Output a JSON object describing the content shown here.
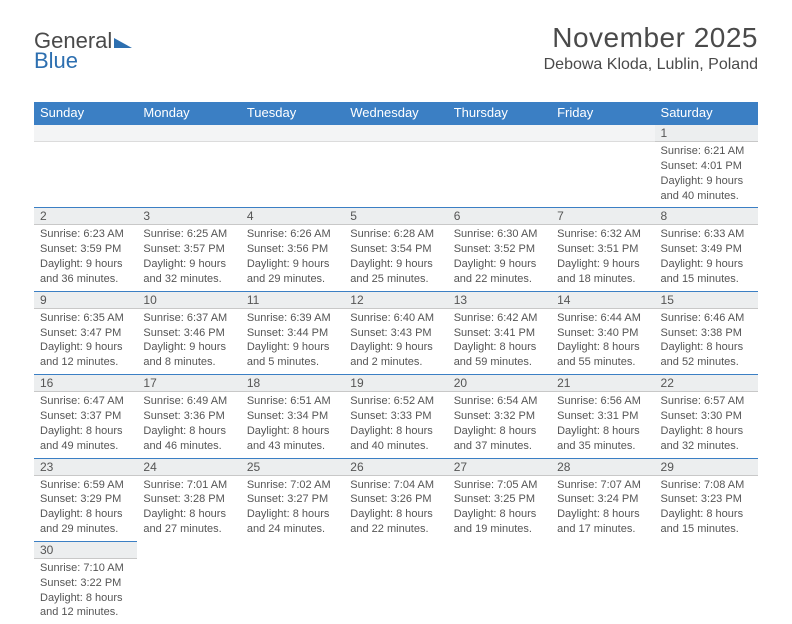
{
  "logo": {
    "part1": "General",
    "part2": "Blue"
  },
  "header": {
    "month_title": "November 2025",
    "location": "Debowa Kloda, Lublin, Poland"
  },
  "colors": {
    "header_bg": "#3b7fc4",
    "header_text": "#ffffff",
    "row_divider": "#3b7fc4",
    "daynum_bg": "#eceeef",
    "text": "#555555"
  },
  "weekdays": [
    "Sunday",
    "Monday",
    "Tuesday",
    "Wednesday",
    "Thursday",
    "Friday",
    "Saturday"
  ],
  "weeks": [
    [
      null,
      null,
      null,
      null,
      null,
      null,
      {
        "n": "1",
        "sunrise": "Sunrise: 6:21 AM",
        "sunset": "Sunset: 4:01 PM",
        "daylight": "Daylight: 9 hours and 40 minutes."
      }
    ],
    [
      {
        "n": "2",
        "sunrise": "Sunrise: 6:23 AM",
        "sunset": "Sunset: 3:59 PM",
        "daylight": "Daylight: 9 hours and 36 minutes."
      },
      {
        "n": "3",
        "sunrise": "Sunrise: 6:25 AM",
        "sunset": "Sunset: 3:57 PM",
        "daylight": "Daylight: 9 hours and 32 minutes."
      },
      {
        "n": "4",
        "sunrise": "Sunrise: 6:26 AM",
        "sunset": "Sunset: 3:56 PM",
        "daylight": "Daylight: 9 hours and 29 minutes."
      },
      {
        "n": "5",
        "sunrise": "Sunrise: 6:28 AM",
        "sunset": "Sunset: 3:54 PM",
        "daylight": "Daylight: 9 hours and 25 minutes."
      },
      {
        "n": "6",
        "sunrise": "Sunrise: 6:30 AM",
        "sunset": "Sunset: 3:52 PM",
        "daylight": "Daylight: 9 hours and 22 minutes."
      },
      {
        "n": "7",
        "sunrise": "Sunrise: 6:32 AM",
        "sunset": "Sunset: 3:51 PM",
        "daylight": "Daylight: 9 hours and 18 minutes."
      },
      {
        "n": "8",
        "sunrise": "Sunrise: 6:33 AM",
        "sunset": "Sunset: 3:49 PM",
        "daylight": "Daylight: 9 hours and 15 minutes."
      }
    ],
    [
      {
        "n": "9",
        "sunrise": "Sunrise: 6:35 AM",
        "sunset": "Sunset: 3:47 PM",
        "daylight": "Daylight: 9 hours and 12 minutes."
      },
      {
        "n": "10",
        "sunrise": "Sunrise: 6:37 AM",
        "sunset": "Sunset: 3:46 PM",
        "daylight": "Daylight: 9 hours and 8 minutes."
      },
      {
        "n": "11",
        "sunrise": "Sunrise: 6:39 AM",
        "sunset": "Sunset: 3:44 PM",
        "daylight": "Daylight: 9 hours and 5 minutes."
      },
      {
        "n": "12",
        "sunrise": "Sunrise: 6:40 AM",
        "sunset": "Sunset: 3:43 PM",
        "daylight": "Daylight: 9 hours and 2 minutes."
      },
      {
        "n": "13",
        "sunrise": "Sunrise: 6:42 AM",
        "sunset": "Sunset: 3:41 PM",
        "daylight": "Daylight: 8 hours and 59 minutes."
      },
      {
        "n": "14",
        "sunrise": "Sunrise: 6:44 AM",
        "sunset": "Sunset: 3:40 PM",
        "daylight": "Daylight: 8 hours and 55 minutes."
      },
      {
        "n": "15",
        "sunrise": "Sunrise: 6:46 AM",
        "sunset": "Sunset: 3:38 PM",
        "daylight": "Daylight: 8 hours and 52 minutes."
      }
    ],
    [
      {
        "n": "16",
        "sunrise": "Sunrise: 6:47 AM",
        "sunset": "Sunset: 3:37 PM",
        "daylight": "Daylight: 8 hours and 49 minutes."
      },
      {
        "n": "17",
        "sunrise": "Sunrise: 6:49 AM",
        "sunset": "Sunset: 3:36 PM",
        "daylight": "Daylight: 8 hours and 46 minutes."
      },
      {
        "n": "18",
        "sunrise": "Sunrise: 6:51 AM",
        "sunset": "Sunset: 3:34 PM",
        "daylight": "Daylight: 8 hours and 43 minutes."
      },
      {
        "n": "19",
        "sunrise": "Sunrise: 6:52 AM",
        "sunset": "Sunset: 3:33 PM",
        "daylight": "Daylight: 8 hours and 40 minutes."
      },
      {
        "n": "20",
        "sunrise": "Sunrise: 6:54 AM",
        "sunset": "Sunset: 3:32 PM",
        "daylight": "Daylight: 8 hours and 37 minutes."
      },
      {
        "n": "21",
        "sunrise": "Sunrise: 6:56 AM",
        "sunset": "Sunset: 3:31 PM",
        "daylight": "Daylight: 8 hours and 35 minutes."
      },
      {
        "n": "22",
        "sunrise": "Sunrise: 6:57 AM",
        "sunset": "Sunset: 3:30 PM",
        "daylight": "Daylight: 8 hours and 32 minutes."
      }
    ],
    [
      {
        "n": "23",
        "sunrise": "Sunrise: 6:59 AM",
        "sunset": "Sunset: 3:29 PM",
        "daylight": "Daylight: 8 hours and 29 minutes."
      },
      {
        "n": "24",
        "sunrise": "Sunrise: 7:01 AM",
        "sunset": "Sunset: 3:28 PM",
        "daylight": "Daylight: 8 hours and 27 minutes."
      },
      {
        "n": "25",
        "sunrise": "Sunrise: 7:02 AM",
        "sunset": "Sunset: 3:27 PM",
        "daylight": "Daylight: 8 hours and 24 minutes."
      },
      {
        "n": "26",
        "sunrise": "Sunrise: 7:04 AM",
        "sunset": "Sunset: 3:26 PM",
        "daylight": "Daylight: 8 hours and 22 minutes."
      },
      {
        "n": "27",
        "sunrise": "Sunrise: 7:05 AM",
        "sunset": "Sunset: 3:25 PM",
        "daylight": "Daylight: 8 hours and 19 minutes."
      },
      {
        "n": "28",
        "sunrise": "Sunrise: 7:07 AM",
        "sunset": "Sunset: 3:24 PM",
        "daylight": "Daylight: 8 hours and 17 minutes."
      },
      {
        "n": "29",
        "sunrise": "Sunrise: 7:08 AM",
        "sunset": "Sunset: 3:23 PM",
        "daylight": "Daylight: 8 hours and 15 minutes."
      }
    ],
    [
      {
        "n": "30",
        "sunrise": "Sunrise: 7:10 AM",
        "sunset": "Sunset: 3:22 PM",
        "daylight": "Daylight: 8 hours and 12 minutes."
      },
      null,
      null,
      null,
      null,
      null,
      null
    ]
  ]
}
